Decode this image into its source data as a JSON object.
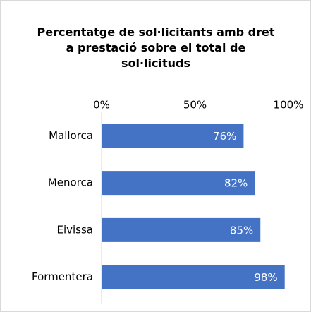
{
  "chart_data": {
    "type": "bar",
    "orientation": "horizontal",
    "title": "Percentatge de sol·licitants amb dret a prestació sobre el total de sol·licituds",
    "categories": [
      "Mallorca",
      "Menorca",
      "Eivissa",
      "Formentera"
    ],
    "values": [
      76,
      82,
      85,
      98
    ],
    "value_labels": [
      "76%",
      "82%",
      "85%",
      "98%"
    ],
    "color": "#4472c4",
    "xlim": [
      0,
      100
    ],
    "xticks": [
      {
        "value": 0,
        "label": "0%"
      },
      {
        "value": 50,
        "label": "50%"
      },
      {
        "value": 100,
        "label": "100%"
      }
    ],
    "grid": false
  }
}
